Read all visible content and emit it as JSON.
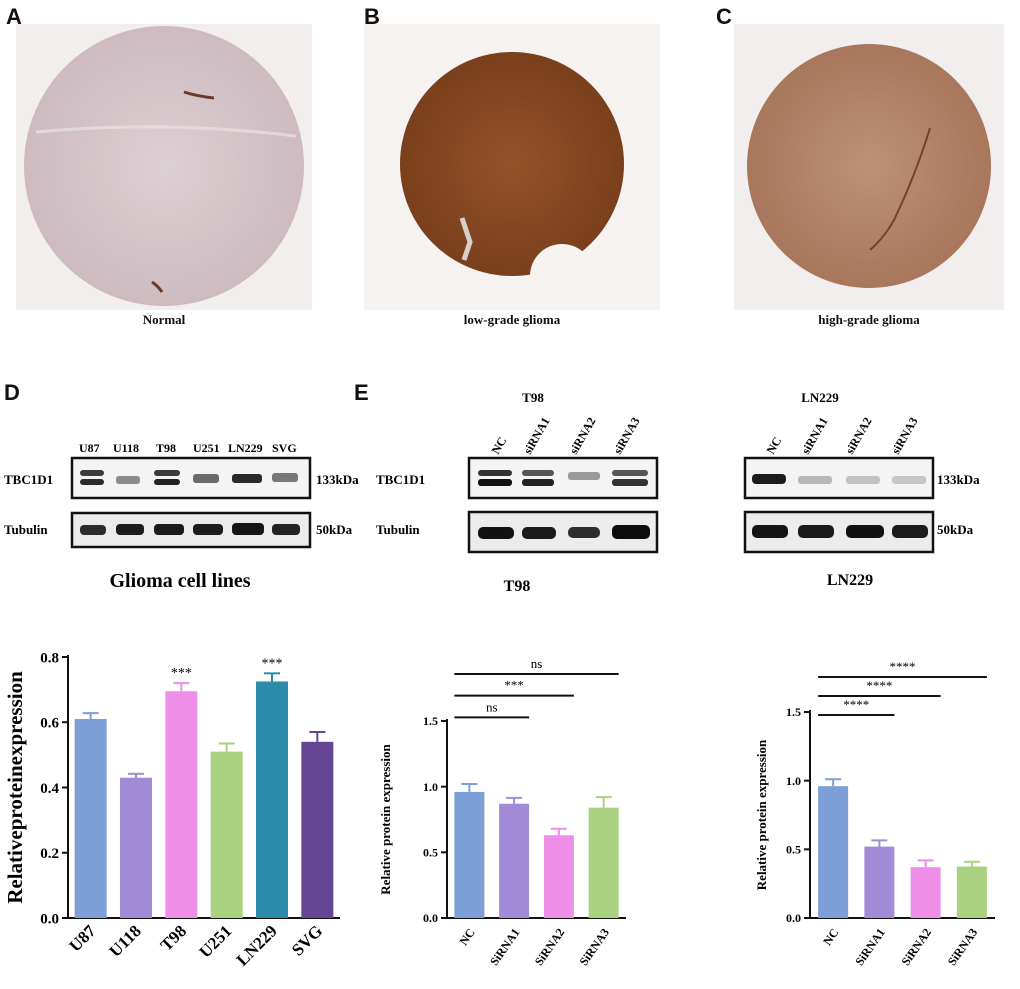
{
  "panels": {
    "A": {
      "letter": "A",
      "caption": "Normal"
    },
    "B": {
      "letter": "B",
      "caption": "low-grade glioma"
    },
    "C": {
      "letter": "C",
      "caption": "high-grade glioma"
    },
    "D": {
      "letter": "D"
    },
    "E": {
      "letter": "E"
    }
  },
  "colors": {
    "normal_tissue": "#d8c8cc",
    "low_grade_tissue": "#8b4a22",
    "high_grade_tissue": "#b7896e"
  },
  "blot_D": {
    "lanes": [
      "U87",
      "U118",
      "T98",
      "U251",
      "LN229",
      "SVG"
    ],
    "rows": [
      {
        "label": "TBC1D1",
        "size": "133kDa"
      },
      {
        "label": "Tubulin",
        "size": "50kDa"
      }
    ],
    "title": "Glioma cell lines"
  },
  "blot_E1": {
    "cell_line": "T98",
    "lanes": [
      "NC",
      "siRNA1",
      "siRNA2",
      "siRNA3"
    ],
    "rows": [
      {
        "label": "TBC1D1"
      },
      {
        "label": "Tubulin"
      }
    ],
    "subtitle": "T98"
  },
  "blot_E2": {
    "cell_line": "LN229",
    "lanes": [
      "NC",
      "siRNA1",
      "siRNA2",
      "siRNA3"
    ],
    "sizes": [
      "133kDa",
      "50kDa"
    ],
    "subtitle": "LN229"
  },
  "chart_data": [
    {
      "type": "bar",
      "panel": "D",
      "categories": [
        "U87",
        "U118",
        "T98",
        "U251",
        "LN229",
        "SVG"
      ],
      "values": [
        0.61,
        0.43,
        0.695,
        0.51,
        0.725,
        0.54
      ],
      "errors": [
        0.018,
        0.012,
        0.025,
        0.025,
        0.025,
        0.03
      ],
      "colors": [
        "#7b9fd6",
        "#a18bd6",
        "#ee8ee6",
        "#a9d17f",
        "#2b8ca9",
        "#634593"
      ],
      "significance": [
        "",
        "",
        "***",
        "",
        "***",
        ""
      ],
      "ylabel": "Relativeproteinexpression",
      "ylim": [
        0.0,
        0.8
      ],
      "yticks": [
        "0.0",
        "0.2",
        "0.4",
        "0.6",
        "0.8"
      ]
    },
    {
      "type": "bar",
      "panel": "E-T98",
      "categories": [
        "NC",
        "SiRNA1",
        "SiRNA2",
        "SiRNA3"
      ],
      "values": [
        0.96,
        0.87,
        0.63,
        0.84
      ],
      "errors": [
        0.06,
        0.045,
        0.05,
        0.08
      ],
      "colors": [
        "#7b9fd6",
        "#a18bd6",
        "#ee8ee6",
        "#a9d17f"
      ],
      "comparisons": [
        {
          "from": 0,
          "to": 1,
          "label": "ns"
        },
        {
          "from": 0,
          "to": 2,
          "label": "***"
        },
        {
          "from": 0,
          "to": 3,
          "label": "ns"
        }
      ],
      "ylabel": "Relative protein expression",
      "ylim": [
        0.0,
        1.5
      ],
      "yticks": [
        "0.0",
        "0.5",
        "1.0",
        "1.5"
      ]
    },
    {
      "type": "bar",
      "panel": "E-LN229",
      "categories": [
        "NC",
        "SiRNA1",
        "SiRNA2",
        "SiRNA3"
      ],
      "values": [
        0.96,
        0.52,
        0.37,
        0.375
      ],
      "errors": [
        0.05,
        0.045,
        0.05,
        0.035
      ],
      "colors": [
        "#7b9fd6",
        "#a18bd6",
        "#ee8ee6",
        "#a9d17f"
      ],
      "comparisons": [
        {
          "from": 0,
          "to": 1,
          "label": "****"
        },
        {
          "from": 0,
          "to": 2,
          "label": "****"
        },
        {
          "from": 0,
          "to": 3,
          "label": "****"
        }
      ],
      "ylabel": "Relative protein expression",
      "ylim": [
        0.0,
        1.5
      ],
      "yticks": [
        "0.0",
        "0.5",
        "1.0",
        "1.5"
      ]
    }
  ]
}
